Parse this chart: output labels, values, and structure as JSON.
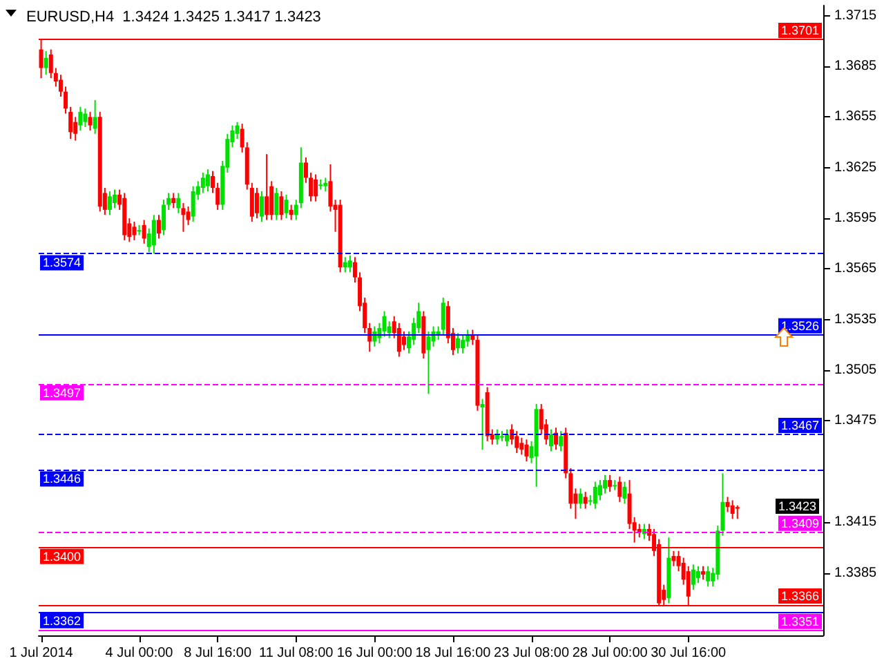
{
  "chart_data": {
    "type": "candlestick",
    "title": "EURUSD,H4  1.3424 1.3425 1.3417 1.3423",
    "categories": [
      "1 Jul 2014",
      null,
      null,
      null,
      null,
      null,
      null,
      null,
      null,
      null,
      null,
      null,
      null,
      null,
      null,
      null,
      null,
      null,
      null,
      null,
      "4 Jul 00:00",
      null,
      null,
      null,
      null,
      null,
      null,
      null,
      null,
      null,
      null,
      null,
      null,
      null,
      null,
      null,
      "8 Jul 16:00",
      null,
      null,
      null,
      null,
      null,
      null,
      null,
      null,
      null,
      null,
      null,
      null,
      null,
      null,
      null,
      "11 Jul 08:00",
      null,
      null,
      null,
      null,
      null,
      null,
      null,
      null,
      null,
      null,
      null,
      null,
      null,
      null,
      null,
      "16 Jul 00:00",
      null,
      null,
      null,
      null,
      null,
      null,
      null,
      null,
      null,
      null,
      null,
      null,
      null,
      null,
      null,
      "18 Jul 16:00",
      null,
      null,
      null,
      null,
      null,
      null,
      null,
      null,
      null,
      null,
      null,
      null,
      null,
      null,
      null,
      "23 Jul 08:00",
      null,
      null,
      null,
      null,
      null,
      null,
      null,
      null,
      null,
      null,
      null,
      null,
      null,
      null,
      null,
      "28 Jul 00:00",
      null,
      null,
      null,
      null,
      null,
      null,
      null,
      null,
      null,
      null,
      null,
      null,
      null,
      null,
      null,
      "30 Jul 16:00",
      null,
      null,
      null,
      null,
      null,
      null,
      null,
      null,
      null,
      null,
      null,
      null,
      null,
      null,
      null,
      null,
      null,
      null,
      null,
      null,
      null,
      null,
      null,
      null,
      null,
      null,
      null
    ],
    "ohlc": [
      [
        1.3695,
        1.3701,
        1.3678,
        1.3684
      ],
      [
        1.3684,
        1.3694,
        1.368,
        1.369
      ],
      [
        1.3692,
        1.3695,
        1.3678,
        1.3681
      ],
      [
        1.3681,
        1.3684,
        1.3673,
        1.3676
      ],
      [
        1.3677,
        1.368,
        1.3667,
        1.367
      ],
      [
        1.367,
        1.3673,
        1.3657,
        1.366
      ],
      [
        1.3658,
        1.3661,
        1.3642,
        1.3646
      ],
      [
        1.3652,
        1.3655,
        1.3641,
        1.3645
      ],
      [
        1.365,
        1.3661,
        1.3647,
        1.3658
      ],
      [
        1.3652,
        1.366,
        1.3649,
        1.3657
      ],
      [
        1.3655,
        1.3658,
        1.3647,
        1.365
      ],
      [
        1.3648,
        1.3665,
        1.3645,
        1.3655
      ],
      [
        1.3655,
        1.3658,
        1.3599,
        1.3602
      ],
      [
        1.361,
        1.3613,
        1.3597,
        1.36
      ],
      [
        1.36,
        1.3611,
        1.3597,
        1.3608
      ],
      [
        1.3604,
        1.3612,
        1.3601,
        1.3609
      ],
      [
        1.3609,
        1.3612,
        1.36,
        1.3603
      ],
      [
        1.3607,
        1.361,
        1.3582,
        1.3585
      ],
      [
        1.3592,
        1.3595,
        1.3581,
        1.3584
      ],
      [
        1.359,
        1.3593,
        1.3582,
        1.3585
      ],
      [
        1.3588,
        1.3591,
        1.3585,
        1.3588
      ],
      [
        1.3591,
        1.3594,
        1.358,
        1.3583
      ],
      [
        1.3578,
        1.3589,
        1.3575,
        1.3586
      ],
      [
        1.3579,
        1.3597,
        1.3574,
        1.3594
      ],
      [
        1.3594,
        1.3597,
        1.3583,
        1.3586
      ],
      [
        1.3588,
        1.3606,
        1.3585,
        1.3603
      ],
      [
        1.3603,
        1.361,
        1.36,
        1.3607
      ],
      [
        1.3607,
        1.361,
        1.3601,
        1.3604
      ],
      [
        1.3601,
        1.361,
        1.3598,
        1.3607
      ],
      [
        1.3601,
        1.3604,
        1.3587,
        1.3597
      ],
      [
        1.3599,
        1.3602,
        1.3591,
        1.3594
      ],
      [
        1.3596,
        1.3614,
        1.3593,
        1.3611
      ],
      [
        1.3609,
        1.3617,
        1.3606,
        1.3614
      ],
      [
        1.3613,
        1.3622,
        1.361,
        1.3619
      ],
      [
        1.3614,
        1.3624,
        1.3611,
        1.3621
      ],
      [
        1.362,
        1.3623,
        1.361,
        1.3613
      ],
      [
        1.3613,
        1.3616,
        1.36,
        1.3603
      ],
      [
        1.3603,
        1.3629,
        1.36,
        1.3626
      ],
      [
        1.3625,
        1.3645,
        1.3622,
        1.3642
      ],
      [
        1.364,
        1.365,
        1.3637,
        1.3647
      ],
      [
        1.3645,
        1.3652,
        1.3642,
        1.365
      ],
      [
        1.3648,
        1.3651,
        1.3634,
        1.3637
      ],
      [
        1.3637,
        1.364,
        1.3612,
        1.3615
      ],
      [
        1.3613,
        1.3616,
        1.3593,
        1.3596
      ],
      [
        1.361,
        1.3613,
        1.3595,
        1.3598
      ],
      [
        1.3596,
        1.3611,
        1.3593,
        1.3608
      ],
      [
        1.3608,
        1.3633,
        1.3594,
        1.3597
      ],
      [
        1.3614,
        1.3617,
        1.3594,
        1.3597
      ],
      [
        1.3597,
        1.3613,
        1.3594,
        1.361
      ],
      [
        1.3608,
        1.3611,
        1.3594,
        1.3597
      ],
      [
        1.3598,
        1.3609,
        1.3595,
        1.3606
      ],
      [
        1.36,
        1.3603,
        1.3594,
        1.3597
      ],
      [
        1.3597,
        1.3606,
        1.3594,
        1.3603
      ],
      [
        1.3604,
        1.3637,
        1.3601,
        1.3628
      ],
      [
        1.3628,
        1.3631,
        1.3616,
        1.3619
      ],
      [
        1.3619,
        1.3622,
        1.3605,
        1.3608
      ],
      [
        1.3618,
        1.3621,
        1.3605,
        1.3608
      ],
      [
        1.3615,
        1.3618,
        1.3612,
        1.3615
      ],
      [
        1.3614,
        1.3619,
        1.3611,
        1.3616
      ],
      [
        1.3617,
        1.3627,
        1.3599,
        1.3602
      ],
      [
        1.3603,
        1.3606,
        1.3587,
        1.36
      ],
      [
        1.3603,
        1.3606,
        1.3563,
        1.3566
      ],
      [
        1.3566,
        1.3572,
        1.3563,
        1.3569
      ],
      [
        1.3566,
        1.3573,
        1.3563,
        1.357
      ],
      [
        1.3569,
        1.3572,
        1.3557,
        1.356
      ],
      [
        1.356,
        1.3563,
        1.354,
        1.3543
      ],
      [
        1.3545,
        1.3548,
        1.3527,
        1.353
      ],
      [
        1.353,
        1.3533,
        1.3516,
        1.3522
      ],
      [
        1.3522,
        1.3531,
        1.3519,
        1.3528
      ],
      [
        1.3524,
        1.3533,
        1.3521,
        1.353
      ],
      [
        1.3528,
        1.354,
        1.3525,
        1.3537
      ],
      [
        1.3527,
        1.3534,
        1.3524,
        1.3531
      ],
      [
        1.3534,
        1.3537,
        1.3524,
        1.3527
      ],
      [
        1.353,
        1.3533,
        1.3513,
        1.3516
      ],
      [
        1.3525,
        1.3528,
        1.3517,
        1.352
      ],
      [
        1.3518,
        1.3528,
        1.3515,
        1.3525
      ],
      [
        1.3523,
        1.3536,
        1.352,
        1.3533
      ],
      [
        1.353,
        1.3545,
        1.3527,
        1.354
      ],
      [
        1.3537,
        1.354,
        1.3512,
        1.3515
      ],
      [
        1.3517,
        1.3528,
        1.3491,
        1.3525
      ],
      [
        1.3522,
        1.3531,
        1.3519,
        1.3528
      ],
      [
        1.3526,
        1.3531,
        1.3523,
        1.3528
      ],
      [
        1.3529,
        1.3548,
        1.3526,
        1.3545
      ],
      [
        1.3543,
        1.3546,
        1.3521,
        1.3524
      ],
      [
        1.3527,
        1.353,
        1.3514,
        1.3517
      ],
      [
        1.3518,
        1.3527,
        1.3515,
        1.3524
      ],
      [
        1.3518,
        1.3526,
        1.3515,
        1.3523
      ],
      [
        1.3522,
        1.3529,
        1.3519,
        1.3526
      ],
      [
        1.3526,
        1.3529,
        1.352,
        1.3523
      ],
      [
        1.3523,
        1.3526,
        1.3481,
        1.3484
      ],
      [
        1.3483,
        1.3488,
        1.3458,
        1.3485
      ],
      [
        1.3492,
        1.3495,
        1.3463,
        1.3466
      ],
      [
        1.3467,
        1.347,
        1.3461,
        1.3464
      ],
      [
        1.3464,
        1.347,
        1.3461,
        1.3467
      ],
      [
        1.3466,
        1.3469,
        1.3463,
        1.3466
      ],
      [
        1.3463,
        1.347,
        1.346,
        1.3467
      ],
      [
        1.347,
        1.3473,
        1.3461,
        1.3464
      ],
      [
        1.3466,
        1.3469,
        1.3456,
        1.3459
      ],
      [
        1.3462,
        1.3465,
        1.3455,
        1.3458
      ],
      [
        1.3461,
        1.3464,
        1.3451,
        1.3454
      ],
      [
        1.3453,
        1.3463,
        1.345,
        1.346
      ],
      [
        1.3454,
        1.3485,
        1.3436,
        1.3482
      ],
      [
        1.3482,
        1.3485,
        1.3467,
        1.347
      ],
      [
        1.3473,
        1.3476,
        1.3461,
        1.3464
      ],
      [
        1.346,
        1.347,
        1.3457,
        1.3467
      ],
      [
        1.3468,
        1.3471,
        1.3458,
        1.3461
      ],
      [
        1.346,
        1.3469,
        1.3457,
        1.3466
      ],
      [
        1.3468,
        1.3471,
        1.3441,
        1.3444
      ],
      [
        1.3444,
        1.3447,
        1.3423,
        1.3426
      ],
      [
        1.3432,
        1.3435,
        1.3417,
        1.3426
      ],
      [
        1.3426,
        1.3435,
        1.3423,
        1.3432
      ],
      [
        1.343,
        1.3433,
        1.3423,
        1.3426
      ],
      [
        1.3428,
        1.3431,
        1.3425,
        1.3428
      ],
      [
        1.3426,
        1.3439,
        1.3423,
        1.3436
      ],
      [
        1.3431,
        1.344,
        1.3428,
        1.3437
      ],
      [
        1.3435,
        1.3443,
        1.3432,
        1.344
      ],
      [
        1.344,
        1.3443,
        1.3433,
        1.3436
      ],
      [
        1.3437,
        1.344,
        1.3434,
        1.3437
      ],
      [
        1.3439,
        1.3442,
        1.3427,
        1.343
      ],
      [
        1.3429,
        1.3439,
        1.3426,
        1.3436
      ],
      [
        1.3432,
        1.344,
        1.3411,
        1.3414
      ],
      [
        1.3415,
        1.3418,
        1.3403,
        1.341
      ],
      [
        1.3411,
        1.3414,
        1.3406,
        1.3409
      ],
      [
        1.3408,
        1.3414,
        1.3405,
        1.3411
      ],
      [
        1.3411,
        1.3414,
        1.3404,
        1.3407
      ],
      [
        1.3408,
        1.3411,
        1.3395,
        1.3398
      ],
      [
        1.3402,
        1.3405,
        1.3366,
        1.3367
      ],
      [
        1.3375,
        1.3378,
        1.3366,
        1.3369
      ],
      [
        1.337,
        1.3406,
        1.3367,
        1.3394
      ],
      [
        1.3395,
        1.3398,
        1.3389,
        1.3392
      ],
      [
        1.3395,
        1.3398,
        1.3386,
        1.3389
      ],
      [
        1.3391,
        1.3394,
        1.3378,
        1.3381
      ],
      [
        1.3386,
        1.3389,
        1.3366,
        1.3371
      ],
      [
        1.3378,
        1.339,
        1.3375,
        1.3387
      ],
      [
        1.3382,
        1.3389,
        1.3379,
        1.3386
      ],
      [
        1.3386,
        1.3389,
        1.3381,
        1.3384
      ],
      [
        1.338,
        1.3389,
        1.3377,
        1.3386
      ],
      [
        1.338,
        1.3388,
        1.3377,
        1.3385
      ],
      [
        1.3384,
        1.3413,
        1.3381,
        1.341
      ],
      [
        1.341,
        1.3444,
        1.3407,
        1.3427
      ],
      [
        1.3427,
        1.343,
        1.3421,
        1.3424
      ],
      [
        1.3425,
        1.3428,
        1.3417,
        1.342
      ],
      [
        1.3424,
        1.3425,
        1.3417,
        1.3423
      ],
      null,
      null,
      null,
      null,
      null,
      null,
      null,
      null,
      null,
      null,
      null,
      null,
      null,
      null,
      null,
      null,
      null
    ],
    "ylim": [
      1.3348,
      1.3721
    ],
    "yticks": [
      1.3385,
      1.3415,
      1.3475,
      1.3505,
      1.3535,
      1.3565,
      1.3595,
      1.3625,
      1.3655,
      1.3685,
      1.3715
    ],
    "grid": false,
    "ref_lines": [
      {
        "axis": "y",
        "value": 1.3701,
        "label": "1.3701",
        "color": "#ff0000",
        "line_style": "solid"
      },
      {
        "axis": "y",
        "value": 1.3574,
        "label": "1.3574",
        "color": "#0000ff",
        "line_style": "dashed"
      },
      {
        "axis": "y",
        "value": 1.3526,
        "label": "1.3526",
        "color": "#0000ff",
        "line_style": "solid"
      },
      {
        "axis": "y",
        "value": 1.3497,
        "label": "1.3497",
        "color": "#ff00ff",
        "line_style": "dashed"
      },
      {
        "axis": "y",
        "value": 1.3467,
        "label": "1.3467",
        "color": "#0000ff",
        "line_style": "dashed"
      },
      {
        "axis": "y",
        "value": 1.3446,
        "label": "1.3446",
        "color": "#0000ff",
        "line_style": "dashed"
      },
      {
        "axis": "y",
        "value": 1.3409,
        "label": "1.3409",
        "color": "#ff00ff",
        "line_style": "dashed"
      },
      {
        "axis": "y",
        "value": 1.34,
        "label": "1.3400",
        "color": "#ff0000",
        "line_style": "solid"
      },
      {
        "axis": "y",
        "value": 1.3366,
        "label": "1.3366",
        "color": "#ff0000",
        "line_style": "solid"
      },
      {
        "axis": "y",
        "value": 1.3362,
        "label": "1.3362",
        "color": "#0000ff",
        "line_style": "solid"
      },
      {
        "axis": "y",
        "value": 1.3351,
        "label": "1.3351",
        "color": "#ff00ff",
        "line_style": "solid"
      }
    ],
    "annotations": [
      "1.3423"
    ]
  }
}
